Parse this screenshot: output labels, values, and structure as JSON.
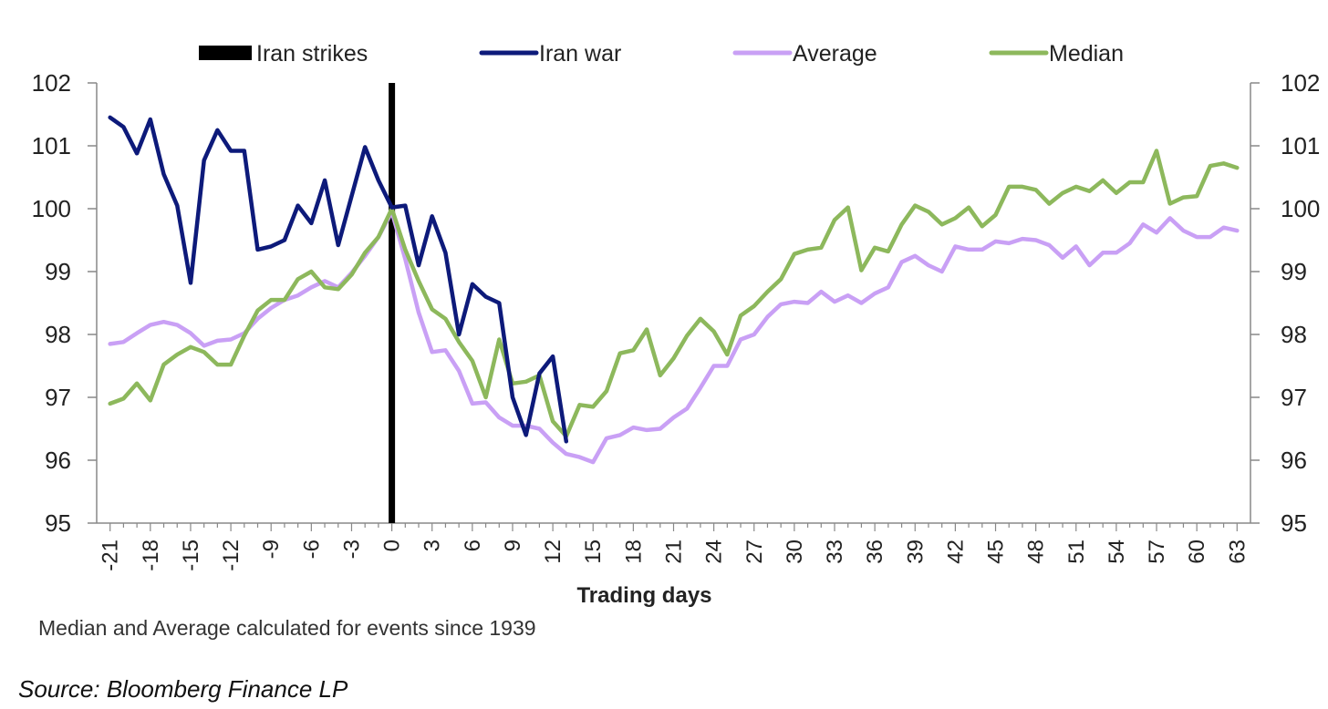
{
  "chart_data": {
    "type": "line",
    "title": "",
    "xlabel": "Trading days",
    "ylabel": "",
    "ylim": [
      95,
      102
    ],
    "xlim": [
      -22,
      64
    ],
    "y_ticks": [
      95,
      96,
      97,
      98,
      99,
      100,
      101,
      102
    ],
    "x_ticks": [
      -21,
      -18,
      -15,
      -12,
      -9,
      -6,
      -3,
      0,
      3,
      6,
      9,
      12,
      15,
      18,
      21,
      24,
      27,
      30,
      33,
      36,
      39,
      42,
      45,
      48,
      51,
      54,
      57,
      60,
      63
    ],
    "event_marker": {
      "name": "Iran strikes",
      "x": 0,
      "color": "#000000"
    },
    "series": [
      {
        "name": "Iran war",
        "color": "#0d1a7a",
        "x": [
          -21,
          -20,
          -19,
          -18,
          -17,
          -16,
          -15,
          -14,
          -13,
          -12,
          -11,
          -10,
          -9,
          -8,
          -7,
          -6,
          -5,
          -4,
          -3,
          -2,
          -1,
          0,
          1,
          2,
          3,
          4,
          5,
          6,
          7,
          8,
          9,
          10,
          11,
          12,
          13
        ],
        "values": [
          101.45,
          101.3,
          100.88,
          101.42,
          100.55,
          100.05,
          98.82,
          100.77,
          101.25,
          100.92,
          100.92,
          99.35,
          99.4,
          99.5,
          100.05,
          99.77,
          100.45,
          99.42,
          100.2,
          100.98,
          100.45,
          100.02,
          100.05,
          99.1,
          99.88,
          99.3,
          98.0,
          98.8,
          98.6,
          98.5,
          97.0,
          96.4,
          97.38,
          97.65,
          96.3
        ]
      },
      {
        "name": "Average",
        "color": "#c9a0f5",
        "x": [
          -21,
          -20,
          -19,
          -18,
          -17,
          -16,
          -15,
          -14,
          -13,
          -12,
          -11,
          -10,
          -9,
          -8,
          -7,
          -6,
          -5,
          -4,
          -3,
          -2,
          -1,
          0,
          1,
          2,
          3,
          4,
          5,
          6,
          7,
          8,
          9,
          10,
          11,
          12,
          13,
          14,
          15,
          16,
          17,
          18,
          19,
          20,
          21,
          22,
          23,
          24,
          25,
          26,
          27,
          28,
          29,
          30,
          31,
          32,
          33,
          34,
          35,
          36,
          37,
          38,
          39,
          40,
          41,
          42,
          43,
          44,
          45,
          46,
          47,
          48,
          49,
          50,
          51,
          52,
          53,
          54,
          55,
          56,
          57,
          58,
          59,
          60,
          61,
          62,
          63
        ],
        "values": [
          97.85,
          97.88,
          98.02,
          98.15,
          98.2,
          98.15,
          98.02,
          97.82,
          97.9,
          97.92,
          98.02,
          98.25,
          98.42,
          98.55,
          98.62,
          98.75,
          98.85,
          98.75,
          98.98,
          99.25,
          99.55,
          99.95,
          99.2,
          98.35,
          97.72,
          97.75,
          97.42,
          96.9,
          96.92,
          96.68,
          96.55,
          96.55,
          96.5,
          96.28,
          96.1,
          96.05,
          95.97,
          96.35,
          96.4,
          96.52,
          96.48,
          96.5,
          96.68,
          96.82,
          97.15,
          97.5,
          97.5,
          97.92,
          98.0,
          98.28,
          98.48,
          98.52,
          98.5,
          98.68,
          98.52,
          98.62,
          98.5,
          98.65,
          98.75,
          99.15,
          99.25,
          99.1,
          99.0,
          99.4,
          99.35,
          99.35,
          99.48,
          99.45,
          99.52,
          99.5,
          99.42,
          99.22,
          99.4,
          99.1,
          99.3,
          99.3,
          99.45,
          99.75,
          99.62,
          99.85,
          99.65,
          99.55,
          99.55,
          99.7,
          99.65
        ]
      },
      {
        "name": "Median",
        "color": "#8db85c",
        "x": [
          -21,
          -20,
          -19,
          -18,
          -17,
          -16,
          -15,
          -14,
          -13,
          -12,
          -11,
          -10,
          -9,
          -8,
          -7,
          -6,
          -5,
          -4,
          -3,
          -2,
          -1,
          0,
          1,
          2,
          3,
          4,
          5,
          6,
          7,
          8,
          9,
          10,
          11,
          12,
          13,
          14,
          15,
          16,
          17,
          18,
          19,
          20,
          21,
          22,
          23,
          24,
          25,
          26,
          27,
          28,
          29,
          30,
          31,
          32,
          33,
          34,
          35,
          36,
          37,
          38,
          39,
          40,
          41,
          42,
          43,
          44,
          45,
          46,
          47,
          48,
          49,
          50,
          51,
          52,
          53,
          54,
          55,
          56,
          57,
          58,
          59,
          60,
          61,
          62,
          63
        ],
        "values": [
          96.9,
          96.98,
          97.22,
          96.95,
          97.52,
          97.68,
          97.8,
          97.72,
          97.52,
          97.52,
          97.98,
          98.38,
          98.55,
          98.55,
          98.88,
          99.0,
          98.75,
          98.72,
          98.95,
          99.3,
          99.55,
          100.0,
          99.35,
          98.85,
          98.4,
          98.25,
          97.88,
          97.58,
          97.0,
          97.92,
          97.22,
          97.25,
          97.35,
          96.62,
          96.38,
          96.88,
          96.85,
          97.1,
          97.7,
          97.75,
          98.08,
          97.35,
          97.62,
          97.98,
          98.25,
          98.05,
          97.68,
          98.3,
          98.45,
          98.68,
          98.88,
          99.28,
          99.35,
          99.38,
          99.82,
          100.02,
          99.02,
          99.38,
          99.32,
          99.75,
          100.05,
          99.95,
          99.75,
          99.85,
          100.02,
          99.72,
          99.9,
          100.35,
          100.35,
          100.3,
          100.08,
          100.25,
          100.35,
          100.28,
          100.45,
          100.25,
          100.42,
          100.42,
          100.92,
          100.08,
          100.18,
          100.2,
          100.68,
          100.72,
          100.65
        ]
      }
    ],
    "legend": [
      {
        "label": "Iran strikes",
        "style": "bar",
        "color": "#000000"
      },
      {
        "label": "Iran war",
        "style": "line",
        "color": "#0d1a7a"
      },
      {
        "label": "Average",
        "style": "line",
        "color": "#c9a0f5"
      },
      {
        "label": "Median",
        "style": "line",
        "color": "#8db85c"
      }
    ],
    "legend_position": "top",
    "grid": false,
    "secondary_y_axis": true
  },
  "footnote": "Median and Average calculated for events since 1939",
  "source": "Source: Bloomberg Finance LP"
}
